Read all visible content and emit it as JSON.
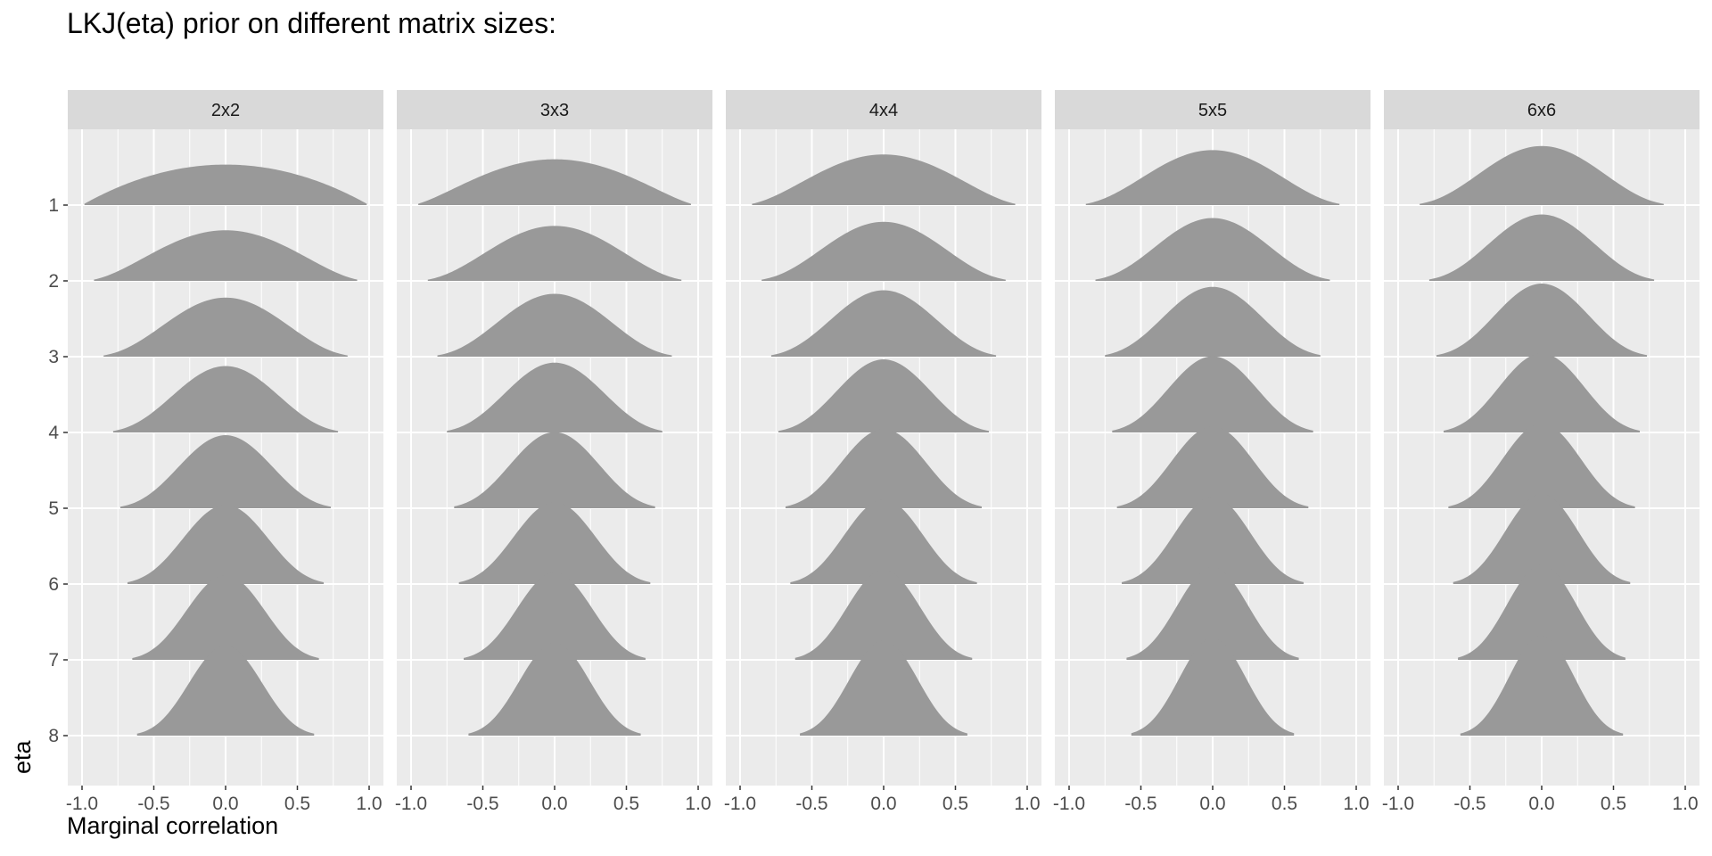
{
  "chart_data": {
    "type": "area",
    "title": "LKJ(eta) prior on different matrix sizes:",
    "xlabel": "Marginal correlation",
    "ylabel": "eta",
    "facets": [
      "2x2",
      "3x3",
      "4x4",
      "5x5",
      "6x6"
    ],
    "facet_dimensions": [
      2,
      3,
      4,
      5,
      6
    ],
    "eta_values": [
      1,
      2,
      3,
      4,
      5,
      6,
      7,
      8
    ],
    "x_ticks": [
      "-1.0",
      "-0.5",
      "0.0",
      "0.5",
      "1.0"
    ],
    "y_ticks": [
      "1",
      "2",
      "3",
      "4",
      "5",
      "6",
      "7",
      "8"
    ],
    "xlim": [
      -1.0,
      1.0
    ],
    "grid": true,
    "legend": "none",
    "colors": {
      "panel_background": "#ebebeb",
      "strip_background": "#d9d9d9",
      "gridline": "#ffffff",
      "ridge_fill": "#999999"
    }
  }
}
